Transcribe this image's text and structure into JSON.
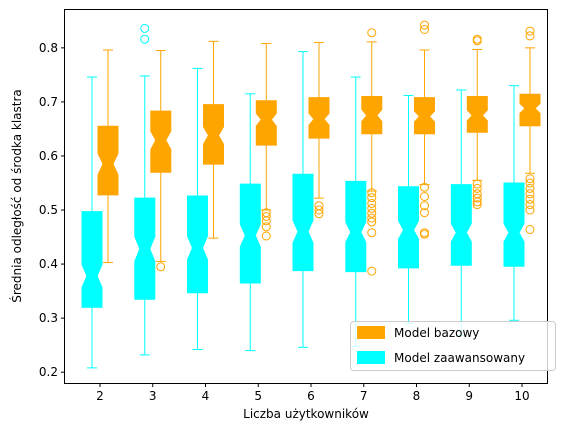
{
  "chart_data": {
    "type": "boxplot",
    "notched": true,
    "xlabel": "Liczba użytkowników",
    "ylabel": "Średnia odległość od środka klastra",
    "categories": [
      "2",
      "3",
      "4",
      "5",
      "6",
      "7",
      "8",
      "9",
      "10"
    ],
    "ylim": [
      0.18,
      0.87
    ],
    "yticks": [
      "0.2",
      "0.3",
      "0.4",
      "0.5",
      "0.6",
      "0.7",
      "0.8"
    ],
    "grid": false,
    "legend_position": "bottom-right",
    "series": [
      {
        "name": "Model bazowy",
        "color": "#ffa500",
        "boxes": [
          {
            "whislo": 0.403,
            "q1": 0.528,
            "med": 0.585,
            "q3": 0.655,
            "whishi": 0.796,
            "ci_lo": 0.565,
            "ci_hi": 0.605,
            "fliers": []
          },
          {
            "whislo": 0.405,
            "q1": 0.57,
            "med": 0.629,
            "q3": 0.683,
            "whishi": 0.795,
            "ci_lo": 0.612,
            "ci_hi": 0.646,
            "fliers": [
              0.395
            ]
          },
          {
            "whislo": 0.448,
            "q1": 0.585,
            "med": 0.638,
            "q3": 0.695,
            "whishi": 0.812,
            "ci_lo": 0.622,
            "ci_hi": 0.654,
            "fliers": []
          },
          {
            "whislo": 0.5,
            "q1": 0.62,
            "med": 0.667,
            "q3": 0.702,
            "whishi": 0.808,
            "ci_lo": 0.655,
            "ci_hi": 0.679,
            "fliers": [
              0.495,
              0.488,
              0.48,
              0.469,
              0.452
            ]
          },
          {
            "whislo": 0.522,
            "q1": 0.633,
            "med": 0.668,
            "q3": 0.708,
            "whishi": 0.81,
            "ci_lo": 0.657,
            "ci_hi": 0.679,
            "fliers": [
              0.508,
              0.5,
              0.493
            ]
          },
          {
            "whislo": 0.535,
            "q1": 0.641,
            "med": 0.675,
            "q3": 0.71,
            "whishi": 0.811,
            "ci_lo": 0.664,
            "ci_hi": 0.686,
            "fliers": [
              0.828,
              0.532,
              0.523,
              0.512,
              0.503,
              0.494,
              0.485,
              0.478,
              0.458,
              0.387
            ]
          },
          {
            "whislo": 0.547,
            "q1": 0.641,
            "med": 0.673,
            "q3": 0.708,
            "whishi": 0.796,
            "ci_lo": 0.663,
            "ci_hi": 0.683,
            "fliers": [
              0.842,
              0.834,
              0.542,
              0.525,
              0.508,
              0.495,
              0.458,
              0.455
            ]
          },
          {
            "whislo": 0.555,
            "q1": 0.644,
            "med": 0.675,
            "q3": 0.71,
            "whishi": 0.797,
            "ci_lo": 0.665,
            "ci_hi": 0.685,
            "fliers": [
              0.816,
              0.813,
              0.548,
              0.54,
              0.53,
              0.522,
              0.515,
              0.51
            ]
          },
          {
            "whislo": 0.568,
            "q1": 0.656,
            "med": 0.688,
            "q3": 0.714,
            "whishi": 0.8,
            "ci_lo": 0.679,
            "ci_hi": 0.697,
            "fliers": [
              0.831,
              0.822,
              0.558,
              0.55,
              0.54,
              0.53,
              0.52,
              0.51,
              0.5,
              0.464
            ]
          }
        ]
      },
      {
        "name": "Model zaawansowany",
        "color": "#00ffff",
        "boxes": [
          {
            "whislo": 0.208,
            "q1": 0.32,
            "med": 0.378,
            "q3": 0.497,
            "whishi": 0.746,
            "ci_lo": 0.357,
            "ci_hi": 0.399,
            "fliers": []
          },
          {
            "whislo": 0.232,
            "q1": 0.335,
            "med": 0.428,
            "q3": 0.522,
            "whishi": 0.748,
            "ci_lo": 0.405,
            "ci_hi": 0.451,
            "fliers": [
              0.836,
              0.816
            ]
          },
          {
            "whislo": 0.242,
            "q1": 0.347,
            "med": 0.43,
            "q3": 0.526,
            "whishi": 0.762,
            "ci_lo": 0.408,
            "ci_hi": 0.452,
            "fliers": []
          },
          {
            "whislo": 0.24,
            "q1": 0.365,
            "med": 0.453,
            "q3": 0.548,
            "whishi": 0.715,
            "ci_lo": 0.432,
            "ci_hi": 0.474,
            "fliers": []
          },
          {
            "whislo": 0.246,
            "q1": 0.388,
            "med": 0.46,
            "q3": 0.566,
            "whishi": 0.793,
            "ci_lo": 0.439,
            "ci_hi": 0.481,
            "fliers": []
          },
          {
            "whislo": 0.248,
            "q1": 0.386,
            "med": 0.459,
            "q3": 0.553,
            "whishi": 0.746,
            "ci_lo": 0.44,
            "ci_hi": 0.478,
            "fliers": []
          },
          {
            "whislo": 0.29,
            "q1": 0.393,
            "med": 0.463,
            "q3": 0.543,
            "whishi": 0.712,
            "ci_lo": 0.446,
            "ci_hi": 0.48,
            "fliers": []
          },
          {
            "whislo": 0.268,
            "q1": 0.398,
            "med": 0.458,
            "q3": 0.547,
            "whishi": 0.722,
            "ci_lo": 0.441,
            "ci_hi": 0.475,
            "fliers": []
          },
          {
            "whislo": 0.296,
            "q1": 0.396,
            "med": 0.458,
            "q3": 0.55,
            "whishi": 0.73,
            "ci_lo": 0.441,
            "ci_hi": 0.475,
            "fliers": []
          }
        ]
      }
    ]
  }
}
